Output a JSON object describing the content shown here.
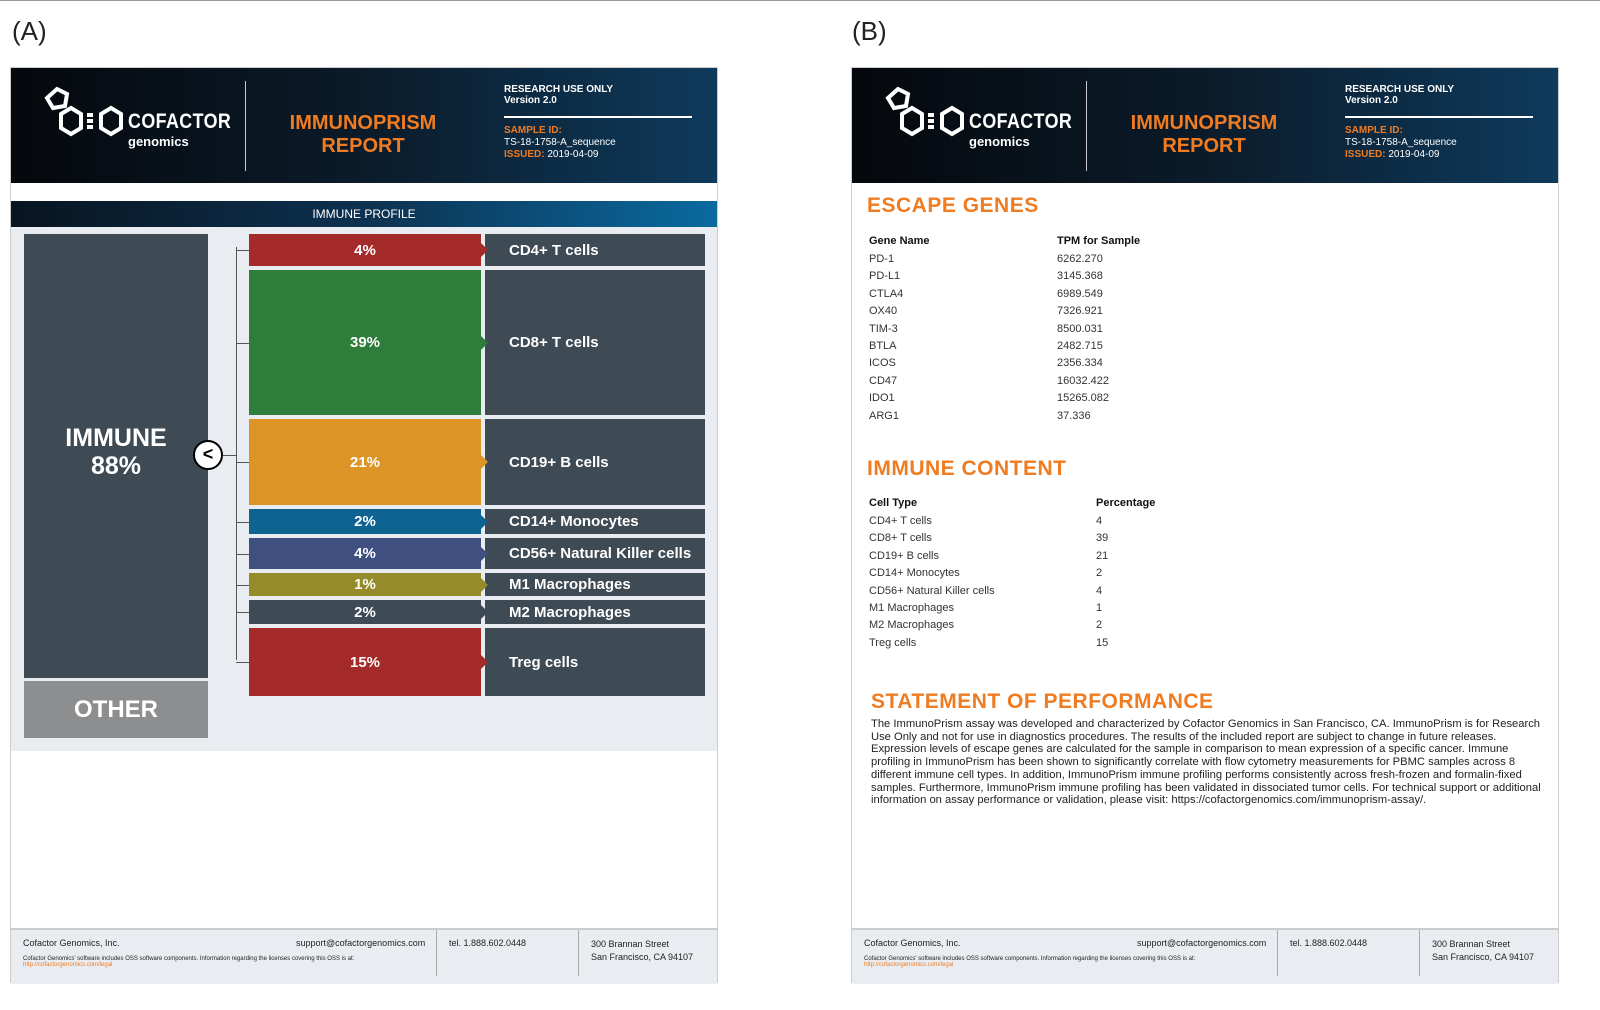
{
  "panels": {
    "a": "(A)",
    "b": "(B)"
  },
  "header": {
    "logo_text": "COFACTOR",
    "logo_sub": "genomics",
    "title_line1": "IMMUNOPRISM",
    "title_line2": "REPORT",
    "research": "RESEARCH USE ONLY",
    "version": "Version 2.0",
    "sample_label": "SAMPLE ID:",
    "sample_id": "TS-18-1758-A_sequence",
    "issued_label": "ISSUED:",
    "issued": "2019-04-09"
  },
  "profile": {
    "title": "IMMUNE PROFILE",
    "immune_label": "IMMUNE",
    "immune_pct": "88%",
    "other_label": "OTHER",
    "collapse_glyph": "<",
    "cells": [
      {
        "pct": "4%",
        "label": "CD4+ T cells",
        "color": "#a52a2a"
      },
      {
        "pct": "39%",
        "label": "CD8+ T cells",
        "color": "#2e7d3a"
      },
      {
        "pct": "21%",
        "label": "CD19+ B cells",
        "color": "#dd9427"
      },
      {
        "pct": "2%",
        "label": "CD14+ Monocytes",
        "color": "#0f6391"
      },
      {
        "pct": "4%",
        "label": "CD56+ Natural Killer cells",
        "color": "#3f5080"
      },
      {
        "pct": "1%",
        "label": "M1 Macrophages",
        "color": "#968b2a"
      },
      {
        "pct": "2%",
        "label": "M2 Macrophages",
        "color": "#3e4a56"
      },
      {
        "pct": "15%",
        "label": "Treg cells",
        "color": "#a52a2a"
      }
    ]
  },
  "escape": {
    "title": "ESCAPE GENES",
    "col1": "Gene Name",
    "col2": "TPM for Sample",
    "rows": [
      [
        "PD-1",
        "6262.270"
      ],
      [
        "PD-L1",
        "3145.368"
      ],
      [
        "CTLA4",
        "6989.549"
      ],
      [
        "OX40",
        "7326.921"
      ],
      [
        "TIM-3",
        "8500.031"
      ],
      [
        "BTLA",
        "2482.715"
      ],
      [
        "ICOS",
        "2356.334"
      ],
      [
        "CD47",
        "16032.422"
      ],
      [
        "IDO1",
        "15265.082"
      ],
      [
        "ARG1",
        "37.336"
      ]
    ]
  },
  "content": {
    "title": "IMMUNE CONTENT",
    "col1": "Cell Type",
    "col2": "Percentage",
    "rows": [
      [
        "CD4+ T cells",
        "4"
      ],
      [
        "CD8+ T cells",
        "39"
      ],
      [
        "CD19+ B cells",
        "21"
      ],
      [
        "CD14+ Monocytes",
        "2"
      ],
      [
        "CD56+ Natural Killer cells",
        "4"
      ],
      [
        "M1 Macrophages",
        "1"
      ],
      [
        "M2 Macrophages",
        "2"
      ],
      [
        "Treg cells",
        "15"
      ]
    ]
  },
  "statement": {
    "title": "STATEMENT OF PERFORMANCE",
    "text": "The ImmunoPrism assay was developed and characterized by Cofactor Genomics in San Francisco, CA. ImmunoPrism is for Research Use Only and not for use in diagnostics procedures. The results of the included report are subject to change in future releases. Expression levels of escape genes are calculated for the sample in comparison to mean expression of a specific cancer. Immune profiling in ImmunoPrism has been shown to significantly correlate with flow cytometry measurements for PBMC samples across 8 different immune cell types. In addition, ImmunoPrism immune profiling performs consistently across fresh-frozen and formalin-fixed samples. Furthermore, ImmunoPrism immune profiling has been validated in dissociated tumor cells. For technical support or additional information on assay performance or validation, please visit: https://cofactorgenomics.com/immunoprism-assay/."
  },
  "footer": {
    "company": "Cofactor Genomics, Inc.",
    "email": "support@cofactorgenomics.com",
    "oss": "Cofactor Genomics' software includes OSS software components. Information regarding the licenses covering this OSS is at:",
    "link": "http://cofactorgenomics.com/legal",
    "tel": "tel. 1.888.602.0448",
    "addr1": "300 Brannan Street",
    "addr2": "San Francisco, CA 94107"
  }
}
